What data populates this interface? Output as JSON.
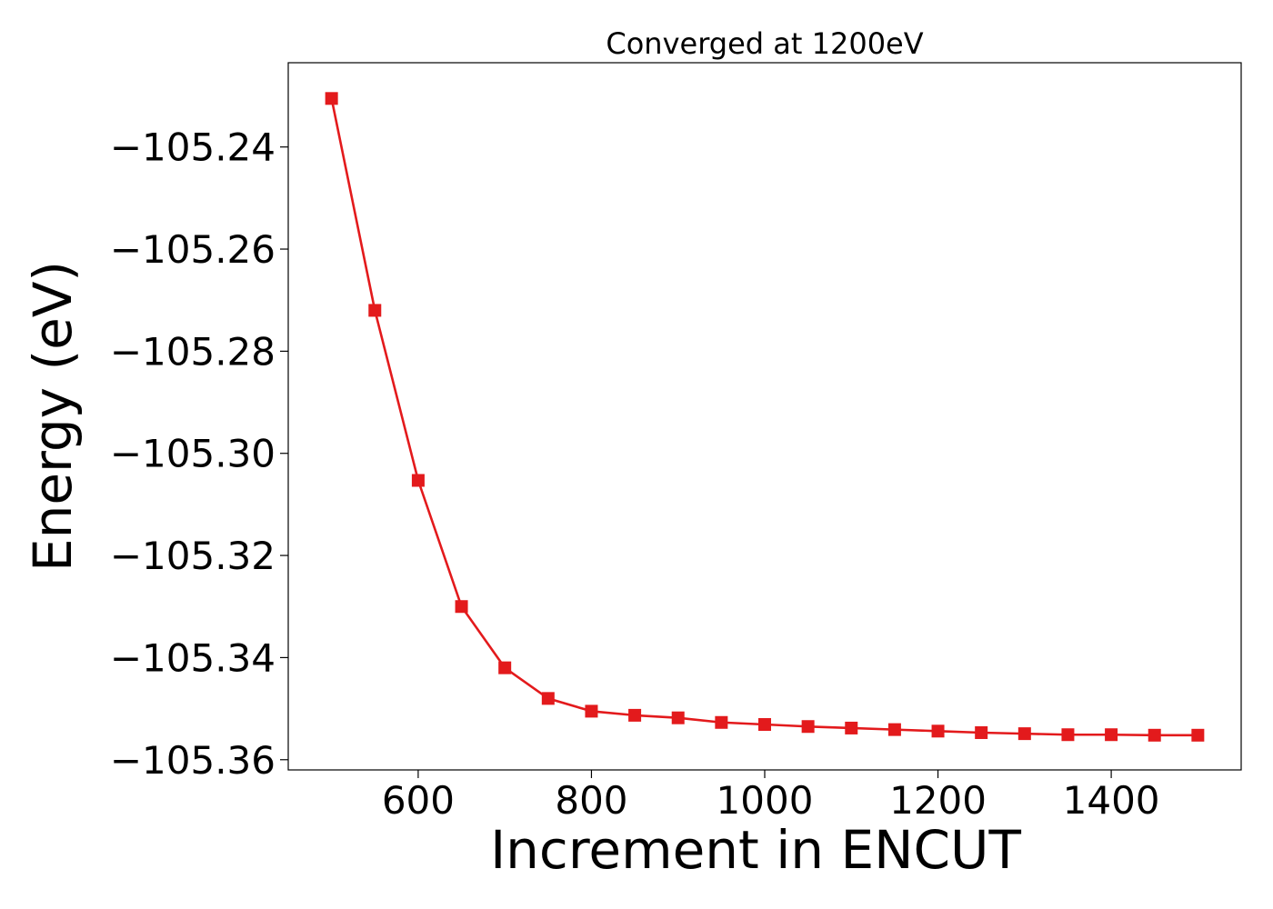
{
  "chart_data": {
    "type": "line",
    "title": "Converged at 1200eV",
    "xlabel": "Increment in ENCUT",
    "ylabel": "Energy (eV)",
    "xlim": [
      450,
      1550
    ],
    "ylim": [
      -105.362,
      -105.2235
    ],
    "x_ticks": [
      600,
      800,
      1000,
      1200,
      1400
    ],
    "y_ticks": [
      -105.24,
      -105.26,
      -105.28,
      -105.3,
      -105.32,
      -105.34,
      -105.36
    ],
    "x_tick_labels": [
      "600",
      "800",
      "1000",
      "1200",
      "1400"
    ],
    "y_tick_labels": [
      "−105.24",
      "−105.26",
      "−105.28",
      "−105.30",
      "−105.32",
      "−105.34",
      "−105.36"
    ],
    "grid": false,
    "legend": false,
    "series": [
      {
        "color": "#e31a1c",
        "marker": "square",
        "x": [
          500,
          550,
          600,
          650,
          700,
          750,
          800,
          850,
          900,
          950,
          1000,
          1050,
          1100,
          1150,
          1200,
          1250,
          1300,
          1350,
          1400,
          1450,
          1500
        ],
        "y": [
          -105.2305,
          -105.272,
          -105.3053,
          -105.33,
          -105.342,
          -105.348,
          -105.3505,
          -105.3513,
          -105.3518,
          -105.3527,
          -105.3531,
          -105.3535,
          -105.3538,
          -105.3541,
          -105.3544,
          -105.3547,
          -105.3549,
          -105.3551,
          -105.3551,
          -105.3552,
          -105.3552
        ]
      }
    ]
  }
}
